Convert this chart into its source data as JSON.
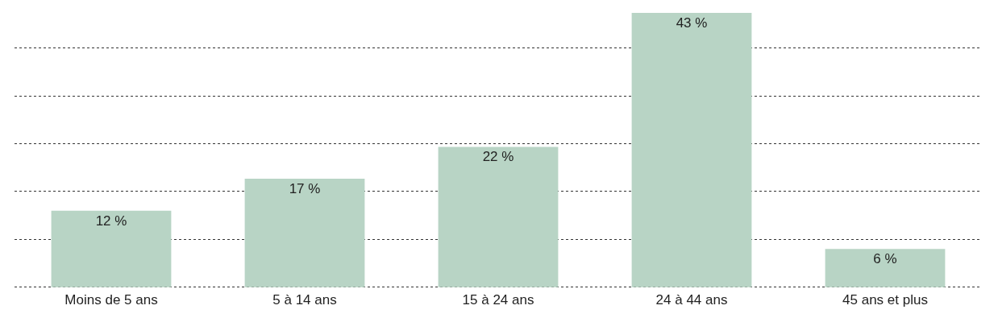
{
  "chart_data": {
    "type": "bar",
    "categories": [
      "Moins de 5 ans",
      "5 à 14 ans",
      "15 à 24 ans",
      "24 à 44 ans",
      "45 ans et plus"
    ],
    "values": [
      12,
      17,
      22,
      43,
      6
    ],
    "value_labels": [
      "12 %",
      "17 %",
      "22 %",
      "43 %",
      "6 %"
    ],
    "color": "#b8d4c5",
    "ylim": [
      -0.4,
      43
    ],
    "yticks": [
      {
        "value": 0,
        "label": null
      },
      {
        "value": 7.5,
        "label": null
      },
      {
        "value": 15,
        "label": null
      },
      {
        "value": 22.5,
        "label": null
      },
      {
        "value": 30,
        "label": null
      },
      {
        "value": 37.5,
        "label": null
      }
    ],
    "grid": "y",
    "tick_labels": "x",
    "legend": false
  }
}
